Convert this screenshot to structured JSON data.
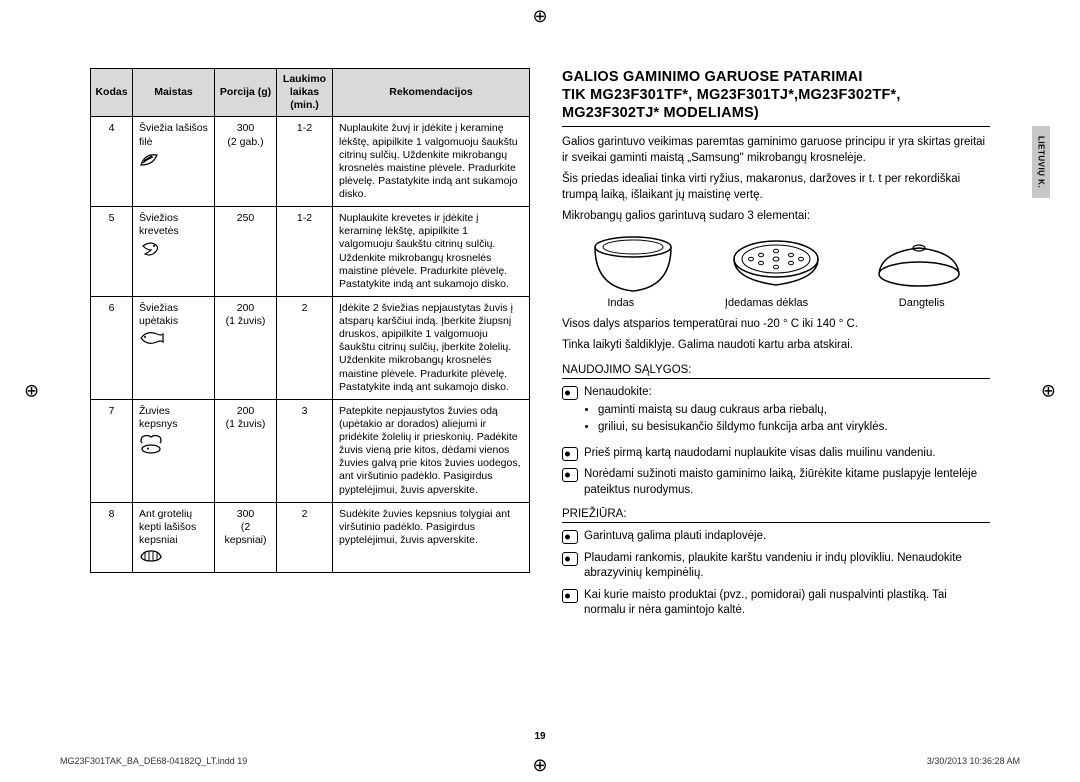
{
  "cropGlyph": "⊕",
  "table": {
    "headers": [
      "Kodas",
      "Maistas",
      "Porcija (g)",
      "Laukimo laikas (min.)",
      "Rekomendacijos"
    ],
    "rows": [
      {
        "code": "4",
        "food": "Šviežia lašišos filė",
        "icon": "leaf",
        "portion": "300",
        "portion_sub": "(2 gab.)",
        "wait": "1-2",
        "rec": "Nuplaukite žuvį ir įdėkite į keraminę lėkštę, apipilkite 1 valgomuoju šaukštu citrinų sulčių. Uždenkite mikrobangų krosnelės maistine plėvele. Pradurkite plėvelę. Pastatykite indą ant sukamojo disko."
      },
      {
        "code": "5",
        "food": "Šviežios krevetės",
        "icon": "shrimp",
        "portion": "250",
        "portion_sub": "",
        "wait": "1-2",
        "rec": "Nuplaukite krevetes ir įdėkite į keraminę lėkštę, apipilkite 1 valgomuoju šaukštu citrinų sulčių. Uždenkite mikrobangų krosnelės maistine plėvele. Pradurkite plėvelę. Pastatykite indą ant sukamojo disko."
      },
      {
        "code": "6",
        "food": "Šviežias upėtakis",
        "icon": "fish",
        "portion": "200",
        "portion_sub": "(1 žuvis)",
        "wait": "2",
        "rec": "Įdėkite 2 šviežias nepjaustytas žuvis į atsparų karščiui indą. Įberkite žiupsnį druskos, apipilkite 1 valgomuoju šaukštu citrinų sulčių, įberkite žolelių. Uždenkite mikrobangų krosnelės maistine plėvele. Pradurkite plėvelę. Pastatykite indą ant sukamojo disko."
      },
      {
        "code": "7",
        "food": "Žuvies kepsnys",
        "icon": "steak",
        "portion": "200",
        "portion_sub": "(1 žuvis)",
        "wait": "3",
        "rec": "Patepkite nepjaustytos žuvies odą (upėtakio ar dorados) aliejumi ir pridėkite žolelių ir prieskonių. Padėkite žuvis vieną prie kitos, dėdami vienos žuvies galvą prie kitos žuvies uodegos, ant viršutinio padėklo. Pasigirdus pyptelėjimui, žuvis apverskite."
      },
      {
        "code": "8",
        "food": "Ant grotelių kepti lašišos kepsniai",
        "icon": "grill",
        "portion": "300",
        "portion_sub": "(2 kepsniai)",
        "wait": "2",
        "rec": "Sudėkite žuvies kepsnius tolygiai ant viršutinio padėklo. Pasigirdus pyptelėjimui, žuvis apverskite."
      }
    ]
  },
  "right": {
    "heading_l1": "GALIOS GAMINIMO GARUOSE PATARIMAI",
    "heading_l2": "TIK MG23F301TF*, MG23F301TJ*,MG23F302TF*, MG23F302TJ* MODELIAMS)",
    "p1": "Galios garintuvo veikimas paremtas gaminimo garuose principu ir yra skirtas greitai ir sveikai gaminti maistą „Samsung\" mikrobangų krosnelėje.",
    "p2": "Šis priedas idealiai tinka virti ryžius, makaronus, daržoves ir t. t per rekordiškai trumpą laiką, išlaikant jų maistinę vertę.",
    "p3": "Mikrobangų galios garintuvą sudaro 3 elementai:",
    "labels": [
      "Indas",
      "Įdedamas dėklas",
      "Dangtelis"
    ],
    "p4": "Visos dalys atsparios temperatūrai nuo -20 ° C iki 140 ° C.",
    "p5": "Tinka laikyti šaldiklyje. Galima naudoti kartu arba atskirai.",
    "sub1": "NAUDOJIMO SĄLYGOS:",
    "n1": "Nenaudokite:",
    "b1": "gaminti maistą su daug cukraus arba riebalų,",
    "b2": "griliui, su besisukančio šildymo funkcija arba ant viryklės.",
    "n2": "Prieš pirmą kartą naudodami nuplaukite visas dalis muilinu vandeniu.",
    "n3": "Norėdami sužinoti maisto gaminimo laiką, žiūrėkite kitame puslapyje lentelėje pateiktus nurodymus.",
    "sub2": "PRIEŽIŪRA:",
    "c1": "Garintuvą galima plauti indaplovėje.",
    "c2": "Plaudami rankomis, plaukite karštu vandeniu ir indų plovikliu. Nenaudokite abrazyvinių kempinėlių.",
    "c3": "Kai kurie maisto produktai (pvz., pomidorai) gali nuspalvinti plastiką. Tai normalu ir nėra gamintojo kaltė."
  },
  "sideTab": "LIETUVIŲ K.",
  "pageNum": "19",
  "footerLeft": "MG23F301TAK_BA_DE68-04182Q_LT.indd   19",
  "footerRight": "3/30/2013   10:36:28 AM"
}
